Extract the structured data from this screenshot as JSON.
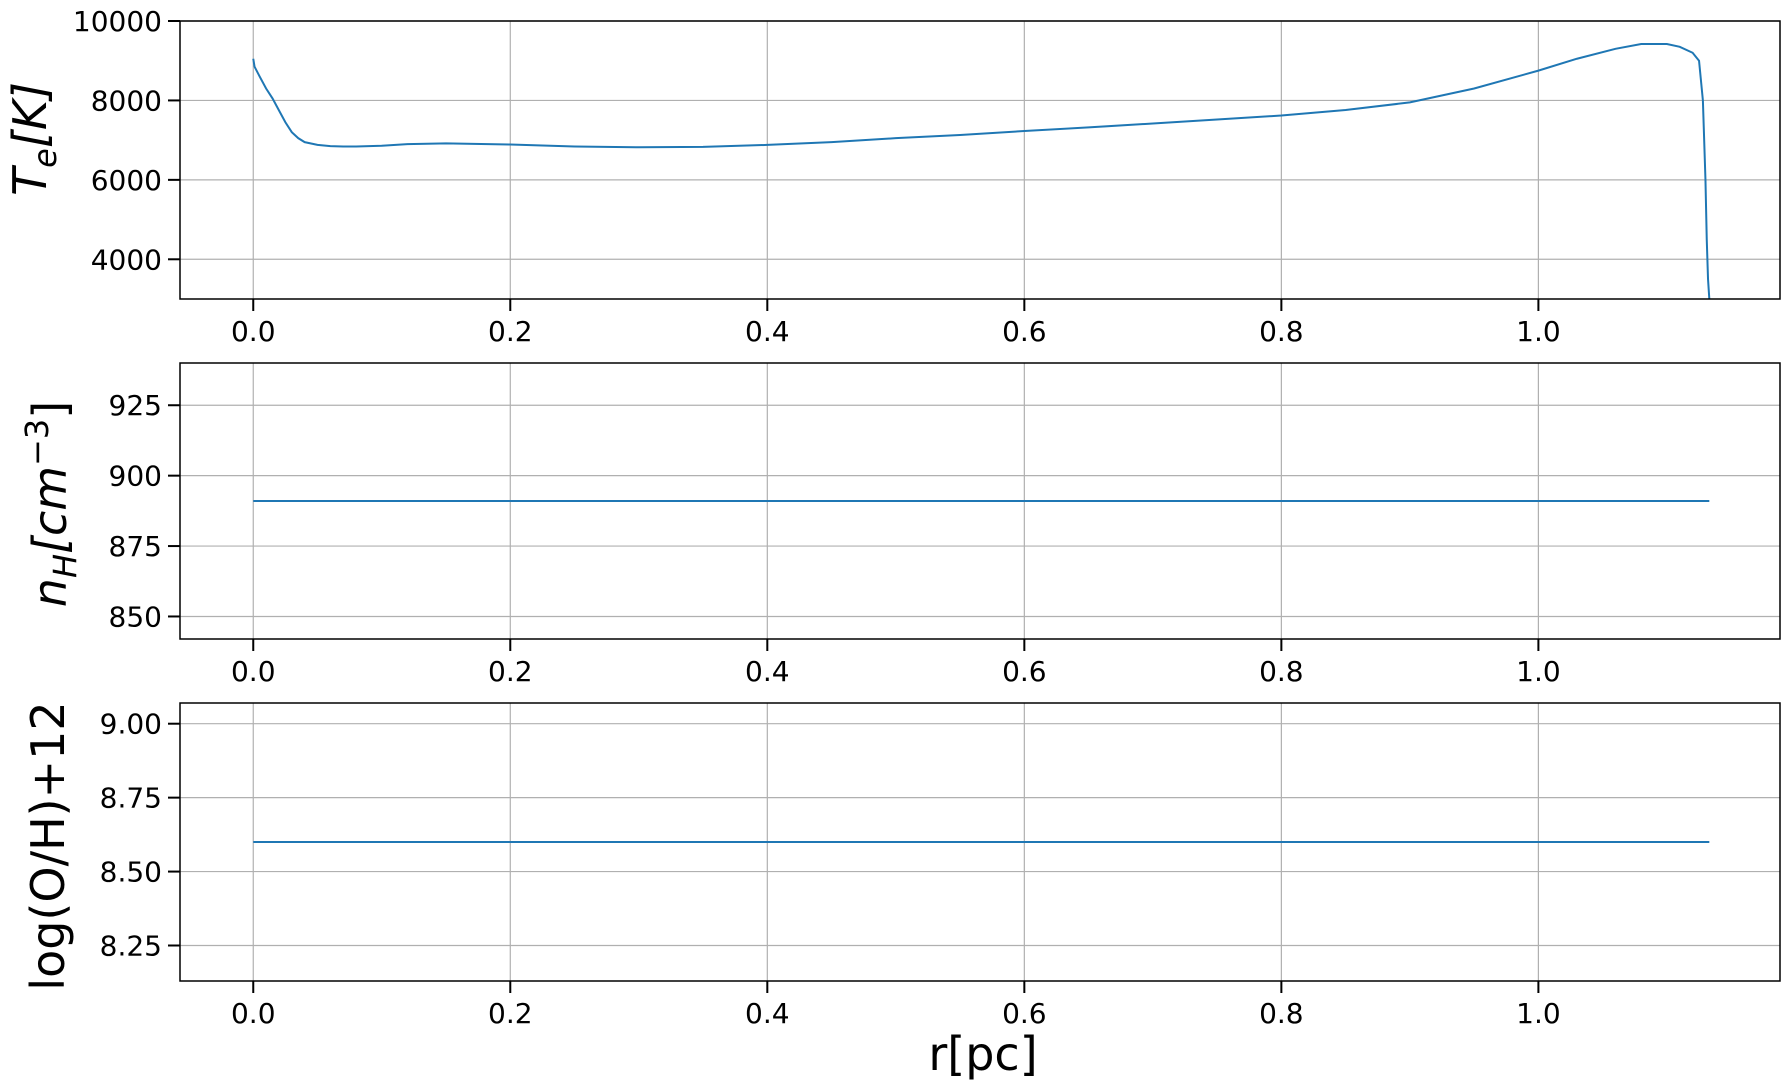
{
  "colors": {
    "line": "#1f77b4",
    "grid": "#b0b0b0",
    "axes": "#000000",
    "background": "#ffffff"
  },
  "chart_data": [
    {
      "type": "line",
      "ylabel_main": "T",
      "ylabel_sub": "e",
      "ylabel_rest": "[K]",
      "xlim": [
        -0.057,
        1.188
      ],
      "ylim": [
        3000,
        10000
      ],
      "xticks": [
        0.0,
        0.2,
        0.4,
        0.6,
        0.8,
        1.0
      ],
      "xtick_labels": [
        "0.0",
        "0.2",
        "0.4",
        "0.6",
        "0.8",
        "1.0"
      ],
      "yticks": [
        4000,
        6000,
        8000,
        10000
      ],
      "ytick_labels": [
        "4000",
        "6000",
        "8000",
        "10000"
      ],
      "grid": true,
      "series": [
        {
          "x": [
            0.0,
            0.001,
            0.005,
            0.01,
            0.015,
            0.02,
            0.025,
            0.03,
            0.035,
            0.04,
            0.05,
            0.06,
            0.07,
            0.08,
            0.1,
            0.12,
            0.15,
            0.2,
            0.25,
            0.3,
            0.35,
            0.4,
            0.45,
            0.5,
            0.55,
            0.6,
            0.65,
            0.7,
            0.75,
            0.8,
            0.85,
            0.9,
            0.95,
            1.0,
            1.03,
            1.06,
            1.08,
            1.1,
            1.11,
            1.12,
            1.125,
            1.128,
            1.13,
            1.131,
            1.132,
            1.133
          ],
          "y": [
            9050,
            8850,
            8600,
            8300,
            8050,
            7750,
            7450,
            7200,
            7050,
            6950,
            6880,
            6850,
            6840,
            6840,
            6860,
            6900,
            6920,
            6890,
            6840,
            6820,
            6830,
            6880,
            6950,
            7050,
            7130,
            7230,
            7320,
            7420,
            7520,
            7620,
            7760,
            7950,
            8300,
            8750,
            9050,
            9300,
            9420,
            9420,
            9350,
            9200,
            9000,
            8000,
            6000,
            4500,
            3500,
            3000
          ]
        }
      ]
    },
    {
      "type": "line",
      "ylabel_main": "n",
      "ylabel_sub": "H",
      "ylabel_rest": "[cm",
      "ylabel_sup": "−3",
      "ylabel_end": "]",
      "xlim": [
        -0.057,
        1.188
      ],
      "ylim": [
        842,
        940
      ],
      "xticks": [
        0.0,
        0.2,
        0.4,
        0.6,
        0.8,
        1.0
      ],
      "xtick_labels": [
        "0.0",
        "0.2",
        "0.4",
        "0.6",
        "0.8",
        "1.0"
      ],
      "yticks": [
        850,
        875,
        900,
        925
      ],
      "ytick_labels": [
        "850",
        "875",
        "900",
        "925"
      ],
      "grid": true,
      "series": [
        {
          "x": [
            0.0,
            1.133
          ],
          "y": [
            891,
            891
          ]
        }
      ]
    },
    {
      "type": "line",
      "ylabel": "log(O/H)+12",
      "xlabel": "r[pc]",
      "xlim": [
        -0.057,
        1.188
      ],
      "ylim": [
        8.13,
        9.07
      ],
      "xticks": [
        0.0,
        0.2,
        0.4,
        0.6,
        0.8,
        1.0
      ],
      "xtick_labels": [
        "0.0",
        "0.2",
        "0.4",
        "0.6",
        "0.8",
        "1.0"
      ],
      "yticks": [
        8.25,
        8.5,
        8.75,
        9.0
      ],
      "ytick_labels": [
        "8.25",
        "8.50",
        "8.75",
        "9.00"
      ],
      "grid": true,
      "series": [
        {
          "x": [
            0.0,
            1.133
          ],
          "y": [
            8.6,
            8.6
          ]
        }
      ]
    }
  ]
}
